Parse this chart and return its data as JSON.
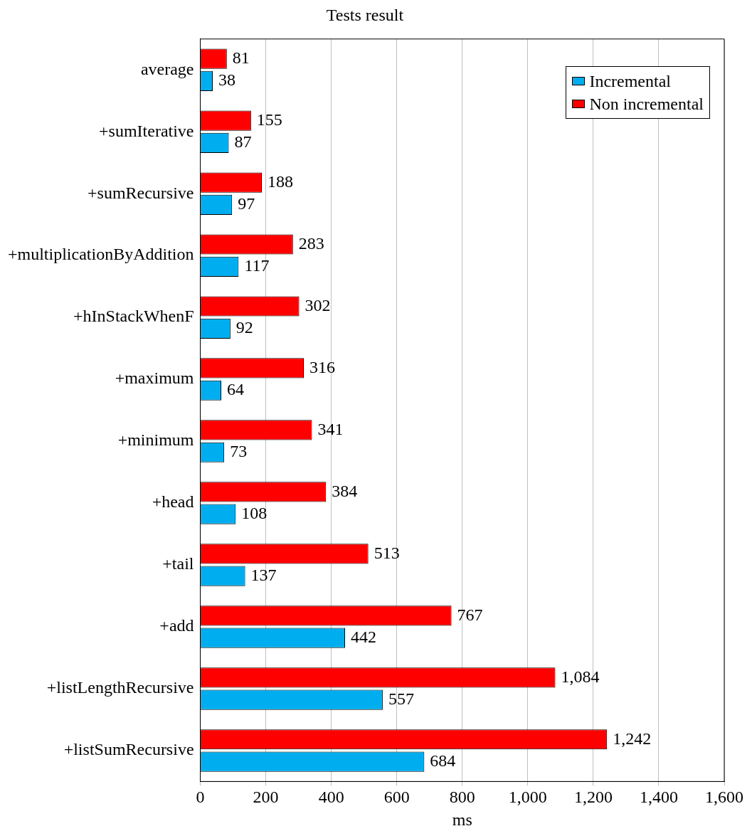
{
  "chart_data": {
    "type": "bar",
    "orientation": "horizontal",
    "title": "Tests result",
    "xlabel": "ms",
    "categories": [
      "average",
      "+sumIterative",
      "+sumRecursive",
      "+multiplicationByAddition",
      "+hInStackWhenF",
      "+maximum",
      "+minimum",
      "+head",
      "+tail",
      "+add",
      "+listLengthRecursive",
      "+listSumRecursive"
    ],
    "series": [
      {
        "name": "Non incremental",
        "color": "#ff0000",
        "values": [
          81,
          155,
          188,
          283,
          302,
          316,
          341,
          384,
          513,
          767,
          1084,
          1242
        ],
        "value_labels": [
          "81",
          "155",
          "188",
          "283",
          "302",
          "316",
          "341",
          "384",
          "513",
          "767",
          "1,084",
          "1,242"
        ]
      },
      {
        "name": "Incremental",
        "color": "#00aeef",
        "values": [
          38,
          87,
          97,
          117,
          92,
          64,
          73,
          108,
          137,
          442,
          557,
          684
        ],
        "value_labels": [
          "38",
          "87",
          "97",
          "117",
          "92",
          "64",
          "73",
          "108",
          "137",
          "442",
          "557",
          "684"
        ]
      }
    ],
    "xlim": [
      0,
      1600
    ],
    "xticks": [
      0,
      200,
      400,
      600,
      800,
      {
        "value": 1000,
        "label": "1,000"
      },
      {
        "value": 1200,
        "label": "1,200"
      },
      {
        "value": 1400,
        "label": "1,400"
      },
      {
        "value": 1600,
        "label": "1,600"
      }
    ],
    "grid": "x",
    "legend": "top right"
  }
}
